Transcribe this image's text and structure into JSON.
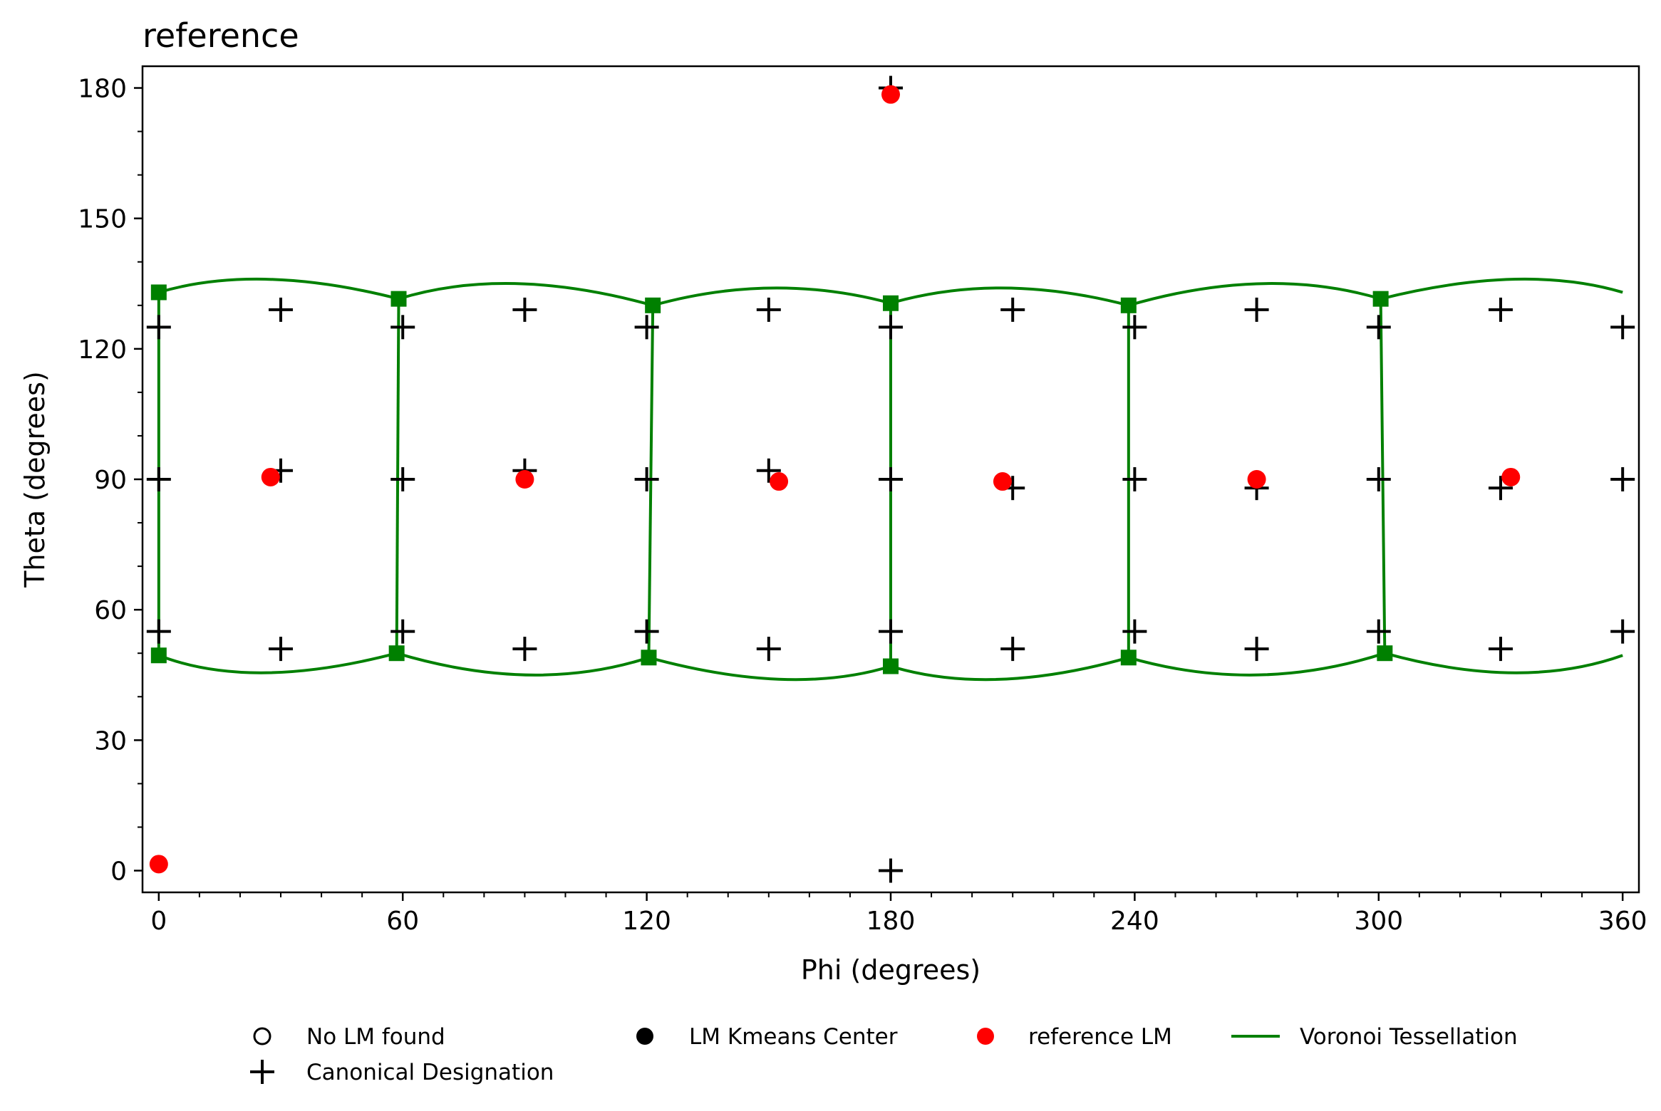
{
  "chart_data": {
    "type": "scatter",
    "title": "reference",
    "xlabel": "Phi (degrees)",
    "ylabel": "Theta (degrees)",
    "xlim": [
      -4,
      364
    ],
    "ylim": [
      185,
      -5
    ],
    "y_inverted": true,
    "grid": false,
    "x_ticks": [
      0,
      60,
      120,
      180,
      240,
      300,
      360
    ],
    "y_ticks": [
      0,
      30,
      60,
      90,
      120,
      150,
      180
    ],
    "legend": {
      "placement": "bottom",
      "entries": [
        {
          "label": "No LM found",
          "marker": "open-circle"
        },
        {
          "label": "LM Kmeans Center",
          "marker": "filled-circle"
        },
        {
          "label": "reference LM",
          "marker": "red-circle"
        },
        {
          "label": "Voronoi Tessellation",
          "marker": "green-line"
        },
        {
          "label": "Canonical Designation",
          "marker": "plus"
        }
      ]
    },
    "colors": {
      "reference": "#ff0000",
      "voronoi": "#008000",
      "canonical": "#000000"
    },
    "series": [
      {
        "name": "Canonical Designation",
        "marker": "plus",
        "points": [
          [
            180,
            0
          ],
          [
            30,
            51
          ],
          [
            90,
            51
          ],
          [
            150,
            51
          ],
          [
            210,
            51
          ],
          [
            270,
            51
          ],
          [
            330,
            51
          ],
          [
            0,
            55
          ],
          [
            60,
            55
          ],
          [
            120,
            55
          ],
          [
            180,
            55
          ],
          [
            240,
            55
          ],
          [
            300,
            55
          ],
          [
            360,
            55
          ],
          [
            0,
            90
          ],
          [
            60,
            90
          ],
          [
            120,
            90
          ],
          [
            180,
            90
          ],
          [
            240,
            90
          ],
          [
            300,
            90
          ],
          [
            360,
            90
          ],
          [
            30,
            92
          ],
          [
            90,
            92
          ],
          [
            150,
            92
          ],
          [
            210,
            88
          ],
          [
            270,
            88
          ],
          [
            330,
            88
          ],
          [
            0,
            125
          ],
          [
            60,
            125
          ],
          [
            120,
            125
          ],
          [
            180,
            125
          ],
          [
            240,
            125
          ],
          [
            300,
            125
          ],
          [
            360,
            125
          ],
          [
            30,
            129
          ],
          [
            90,
            129
          ],
          [
            150,
            129
          ],
          [
            210,
            129
          ],
          [
            270,
            129
          ],
          [
            330,
            129
          ],
          [
            180,
            180
          ]
        ]
      },
      {
        "name": "reference LM",
        "marker": "red-circle",
        "points": [
          [
            0,
            1.5
          ],
          [
            27.5,
            90.5
          ],
          [
            90,
            90
          ],
          [
            152.5,
            89.5
          ],
          [
            207.5,
            89.5
          ],
          [
            270,
            90
          ],
          [
            332.5,
            90.5
          ],
          [
            180,
            178.5
          ]
        ]
      },
      {
        "name": "Voronoi Tessellation",
        "marker": "green-line",
        "vertices": [
          [
            0,
            49.5
          ],
          [
            58.5,
            50
          ],
          [
            120.5,
            49
          ],
          [
            180,
            47
          ],
          [
            238.5,
            49
          ],
          [
            301.5,
            50
          ],
          [
            0,
            133
          ],
          [
            59,
            131.5
          ],
          [
            121.5,
            130
          ],
          [
            180,
            130.5
          ],
          [
            238.5,
            130
          ],
          [
            300.5,
            131.5
          ]
        ],
        "top_arcs": [
          {
            "from": [
              0,
              49.5
            ],
            "peak": [
              26,
              45.5
            ],
            "to": [
              58.5,
              50
            ]
          },
          {
            "from": [
              58.5,
              50
            ],
            "peak": [
              91,
              45
            ],
            "to": [
              120.5,
              49
            ]
          },
          {
            "from": [
              120.5,
              49
            ],
            "peak": [
              153,
              44
            ],
            "to": [
              180,
              47
            ]
          },
          {
            "from": [
              180,
              47
            ],
            "peak": [
              207,
              44
            ],
            "to": [
              238.5,
              49
            ]
          },
          {
            "from": [
              238.5,
              49
            ],
            "peak": [
              270,
              45
            ],
            "to": [
              301.5,
              50
            ]
          },
          {
            "from": [
              301.5,
              50
            ],
            "peak": [
              333,
              45.5
            ],
            "to": [
              360,
              49.5
            ]
          }
        ],
        "bottom_arcs": [
          {
            "from": [
              0,
              133
            ],
            "peak": [
              27,
              136
            ],
            "to": [
              59,
              131.5
            ]
          },
          {
            "from": [
              59,
              131.5
            ],
            "peak": [
              88,
              135
            ],
            "to": [
              121.5,
              130
            ]
          },
          {
            "from": [
              121.5,
              130
            ],
            "peak": [
              151,
              134
            ],
            "to": [
              180,
              130.5
            ]
          },
          {
            "from": [
              180,
              130.5
            ],
            "peak": [
              208,
              134
            ],
            "to": [
              238.5,
              130
            ]
          },
          {
            "from": [
              238.5,
              130
            ],
            "peak": [
              271,
              135
            ],
            "to": [
              300.5,
              131.5
            ]
          },
          {
            "from": [
              300.5,
              131.5
            ],
            "peak": [
              333,
              136
            ],
            "to": [
              360,
              133
            ]
          }
        ],
        "verticals": [
          [
            [
              0,
              49.5
            ],
            [
              0,
              133
            ]
          ],
          [
            [
              58.5,
              50
            ],
            [
              59,
              131.5
            ]
          ],
          [
            [
              120.5,
              49
            ],
            [
              121.5,
              130
            ]
          ],
          [
            [
              180,
              47
            ],
            [
              180,
              130.5
            ]
          ],
          [
            [
              238.5,
              49
            ],
            [
              238.5,
              130
            ]
          ],
          [
            [
              301.5,
              50
            ],
            [
              300.5,
              131.5
            ]
          ]
        ]
      }
    ]
  }
}
